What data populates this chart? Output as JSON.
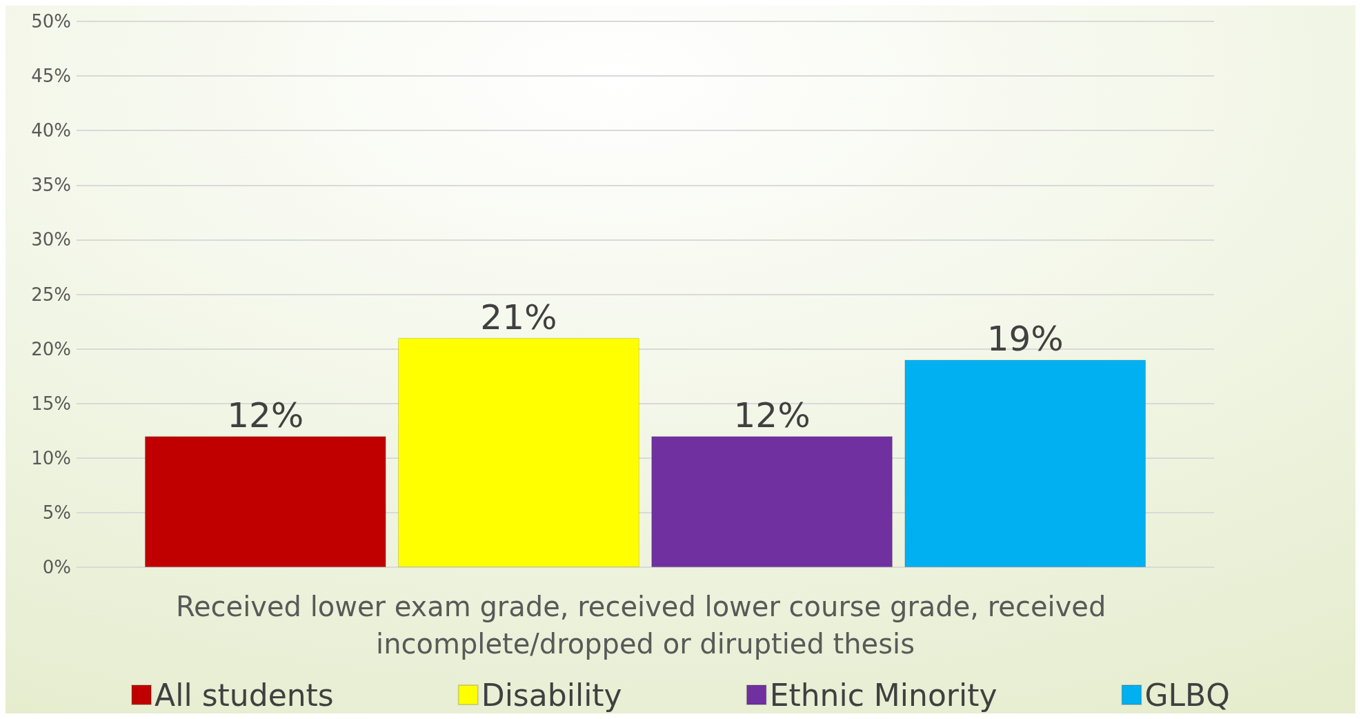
{
  "chart_data": {
    "type": "bar",
    "categories": [
      "Received lower exam grade, received lower course grade, received incomplete/dropped or diruptied thesis"
    ],
    "series": [
      {
        "name": "All students",
        "color": "#c00000",
        "values": [
          12
        ],
        "value_labels": [
          "12%"
        ]
      },
      {
        "name": "Disability",
        "color": "#ffff00",
        "values": [
          21
        ],
        "value_labels": [
          "21%"
        ]
      },
      {
        "name": "Ethnic Minority",
        "color": "#7030a0",
        "values": [
          12
        ],
        "value_labels": [
          "12%"
        ]
      },
      {
        "name": "GLBQ",
        "color": "#00b0f0",
        "values": [
          19
        ],
        "value_labels": [
          "19%"
        ]
      }
    ],
    "ylim": [
      0,
      50
    ],
    "yticks": [
      {
        "value": 0,
        "label": "0%"
      },
      {
        "value": 5,
        "label": "5%"
      },
      {
        "value": 10,
        "label": "10%"
      },
      {
        "value": 15,
        "label": "15%"
      },
      {
        "value": 20,
        "label": "20%"
      },
      {
        "value": 25,
        "label": "25%"
      },
      {
        "value": 30,
        "label": "30%"
      },
      {
        "value": 35,
        "label": "35%"
      },
      {
        "value": 40,
        "label": "40%"
      },
      {
        "value": 45,
        "label": "45%"
      },
      {
        "value": 50,
        "label": "50%"
      }
    ],
    "grid": "y",
    "legend": "bottom"
  }
}
